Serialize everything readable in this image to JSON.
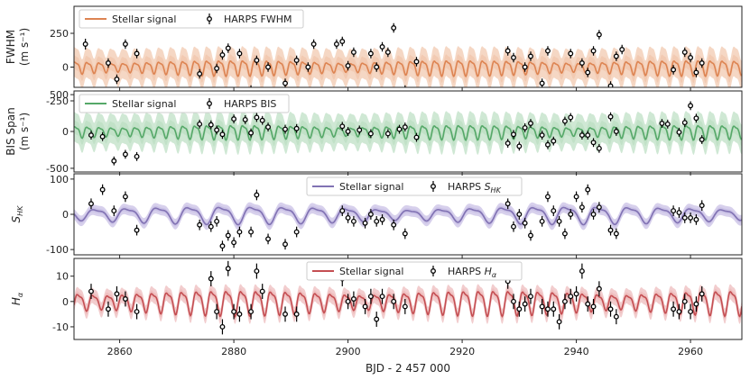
{
  "chart_data": {
    "type": "line",
    "xlabel": "BJD - 2 457 000",
    "xlim": [
      2852,
      2969
    ],
    "xticks": [
      2860,
      2880,
      2900,
      2920,
      2940,
      2960
    ],
    "panels": [
      {
        "id": "fwhm",
        "ylabel_lines": [
          "FWHM",
          "(m s⁻¹)"
        ],
        "ylim": [
          -150,
          450
        ],
        "yticks": [
          -250,
          0,
          250
        ],
        "color": "#dd8452",
        "band_color": "#f2c9b0",
        "legend": {
          "model": "Stellar signal",
          "data": "HARPS FWHM"
        },
        "model": {
          "period": 2.1,
          "amplitude": 70,
          "band": 110,
          "mod_period": 40
        },
        "data": {
          "x": [
            2854,
            2858,
            2859.5,
            2861,
            2863,
            2874,
            2876,
            2877,
            2878,
            2879,
            2880,
            2881,
            2883,
            2884,
            2886,
            2889,
            2891,
            2893,
            2894,
            2898,
            2899,
            2900,
            2901,
            2903,
            2904,
            2905,
            2906,
            2907,
            2908,
            2910,
            2912,
            2928,
            2929,
            2930,
            2931,
            2932,
            2934,
            2935,
            2936,
            2937,
            2939,
            2940,
            2941,
            2942,
            2943,
            2944,
            2946,
            2947,
            2948,
            2957,
            2958,
            2959,
            2960,
            2961,
            2962
          ],
          "y": [
            170,
            30,
            -90,
            170,
            100,
            -50,
            -230,
            -10,
            90,
            140,
            -220,
            100,
            -170,
            50,
            0,
            -120,
            50,
            0,
            170,
            170,
            190,
            10,
            110,
            -210,
            100,
            0,
            150,
            110,
            290,
            -170,
            40,
            120,
            70,
            -290,
            0,
            80,
            -120,
            120,
            -220,
            -320,
            100,
            -220,
            30,
            -40,
            120,
            240,
            -140,
            80,
            130,
            -20,
            -190,
            110,
            70,
            -40,
            30
          ],
          "err": [
            40,
            35,
            35,
            35,
            35,
            35,
            35,
            35,
            35,
            35,
            35,
            35,
            35,
            35,
            35,
            35,
            35,
            35,
            35,
            35,
            35,
            35,
            35,
            35,
            35,
            35,
            35,
            35,
            35,
            35,
            35,
            35,
            35,
            35,
            35,
            35,
            35,
            35,
            35,
            35,
            35,
            35,
            35,
            35,
            35,
            35,
            35,
            35,
            35,
            35,
            35,
            35,
            35,
            35,
            35
          ]
        }
      },
      {
        "id": "bis",
        "ylabel_lines": [
          "BIS Span",
          "(m s⁻¹)"
        ],
        "ylim": [
          -550,
          550
        ],
        "yticks": [
          -500,
          0,
          500
        ],
        "color": "#55a868",
        "band_color": "#bfe0c5",
        "legend": {
          "model": "Stellar signal",
          "data": "HARPS BIS"
        },
        "model": {
          "period": 2.1,
          "amplitude": 120,
          "band": 200,
          "mod_period": 40
        },
        "data": {
          "x": [
            2855,
            2857,
            2859,
            2861,
            2863,
            2874,
            2876,
            2877,
            2878,
            2880,
            2882,
            2883,
            2884,
            2885,
            2886,
            2889,
            2891,
            2899,
            2900,
            2902,
            2904,
            2907,
            2909,
            2910,
            2912,
            2928,
            2929,
            2930,
            2931,
            2932,
            2934,
            2935,
            2936,
            2938,
            2939,
            2941,
            2942,
            2943,
            2944,
            2946,
            2947,
            2955,
            2956,
            2958,
            2959,
            2960,
            2961,
            2962
          ],
          "y": [
            -50,
            -70,
            -400,
            -310,
            -340,
            100,
            90,
            20,
            -40,
            170,
            160,
            -20,
            190,
            150,
            60,
            30,
            40,
            70,
            0,
            20,
            -30,
            -30,
            30,
            60,
            -80,
            -160,
            -40,
            -200,
            50,
            110,
            -50,
            -180,
            -130,
            140,
            190,
            -50,
            -50,
            -150,
            -230,
            200,
            0,
            110,
            100,
            -10,
            120,
            350,
            180,
            -110
          ],
          "err": [
            60,
            60,
            60,
            60,
            60,
            60,
            60,
            60,
            60,
            60,
            60,
            60,
            60,
            60,
            60,
            60,
            60,
            60,
            60,
            60,
            60,
            60,
            60,
            60,
            60,
            60,
            60,
            60,
            60,
            60,
            60,
            60,
            60,
            60,
            60,
            60,
            60,
            60,
            60,
            60,
            60,
            60,
            60,
            60,
            60,
            60,
            60,
            60
          ]
        }
      },
      {
        "id": "shk",
        "ylabel_lines": [
          "S_HK"
        ],
        "ylim": [
          -115,
          115
        ],
        "yticks": [
          -100,
          0,
          100
        ],
        "color": "#8172b3",
        "band_color": "#c9c0e6",
        "legend": {
          "model": "Stellar signal",
          "data": "HARPS S_HK"
        },
        "model": {
          "period": 5.5,
          "amplitude": 30,
          "band": 15,
          "mod_period": 60
        },
        "data": {
          "x": [
            2855,
            2857,
            2859,
            2861,
            2863,
            2874,
            2876,
            2877,
            2878,
            2879,
            2880,
            2881,
            2883,
            2884,
            2886,
            2889,
            2891,
            2899,
            2900,
            2901,
            2903,
            2904,
            2905,
            2906,
            2908,
            2910,
            2928,
            2929,
            2930,
            2931,
            2932,
            2934,
            2935,
            2936,
            2937,
            2938,
            2939,
            2940,
            2941,
            2942,
            2943,
            2944,
            2946,
            2947,
            2957,
            2958,
            2959,
            2960,
            2961,
            2962
          ],
          "y": [
            30,
            70,
            10,
            50,
            -45,
            -30,
            -35,
            -20,
            -90,
            -60,
            -80,
            -50,
            -50,
            55,
            -70,
            -85,
            -50,
            10,
            -10,
            -20,
            -25,
            0,
            -20,
            -15,
            -30,
            -55,
            30,
            -35,
            0,
            -25,
            -60,
            -20,
            50,
            10,
            -20,
            -55,
            0,
            50,
            20,
            70,
            0,
            20,
            -45,
            -55,
            10,
            5,
            -10,
            -10,
            -15,
            25
          ],
          "err": [
            15,
            15,
            15,
            15,
            15,
            15,
            15,
            15,
            15,
            15,
            15,
            15,
            15,
            15,
            15,
            15,
            15,
            15,
            15,
            15,
            15,
            15,
            15,
            15,
            15,
            15,
            15,
            15,
            15,
            15,
            15,
            15,
            15,
            15,
            15,
            15,
            15,
            15,
            15,
            15,
            15,
            15,
            15,
            15,
            15,
            15,
            15,
            15,
            15,
            15
          ]
        }
      },
      {
        "id": "ha",
        "ylabel_lines": [
          "H_alpha"
        ],
        "ylim": [
          -15,
          17
        ],
        "yticks": [
          -10,
          0,
          10
        ],
        "color": "#c44e52",
        "band_color": "#eebcbd",
        "legend": {
          "model": "Stellar signal",
          "data": "HARPS H_alpha"
        },
        "model": {
          "period": 2.6,
          "amplitude": 6,
          "band": 3,
          "mod_period": 45
        },
        "data": {
          "x": [
            2855,
            2858,
            2859.5,
            2861,
            2863,
            2876,
            2877,
            2878,
            2879,
            2880,
            2881,
            2883,
            2884,
            2885,
            2889,
            2891,
            2899,
            2900,
            2901,
            2903,
            2904,
            2905,
            2906,
            2908,
            2910,
            2928,
            2929,
            2930,
            2931,
            2932,
            2934,
            2935,
            2936,
            2937,
            2938,
            2939,
            2940,
            2941,
            2942,
            2943,
            2944,
            2946,
            2947,
            2957,
            2958,
            2959,
            2960,
            2961,
            2962
          ],
          "y": [
            4,
            -3,
            3,
            1,
            -4,
            9,
            -4,
            -10,
            13,
            -4,
            -5,
            -4,
            12,
            4,
            -5,
            -5,
            9,
            0,
            1,
            -2,
            2,
            -7,
            2,
            0,
            -2,
            8,
            0,
            -3,
            -1,
            2,
            -2,
            -3,
            -3,
            -8,
            0,
            2,
            3,
            12,
            -1,
            -2,
            5,
            -3,
            -6,
            -3,
            -4,
            0,
            -4,
            -1,
            3
          ],
          "err": [
            3,
            3,
            3,
            3,
            3,
            3,
            3,
            3,
            3,
            3,
            3,
            3,
            3,
            3,
            3,
            3,
            3,
            3,
            3,
            3,
            3,
            3,
            3,
            3,
            3,
            3,
            3,
            3,
            3,
            3,
            3,
            3,
            3,
            3,
            3,
            3,
            3,
            3,
            3,
            3,
            3,
            3,
            3,
            3,
            3,
            3,
            3,
            3,
            3
          ]
        }
      }
    ]
  }
}
